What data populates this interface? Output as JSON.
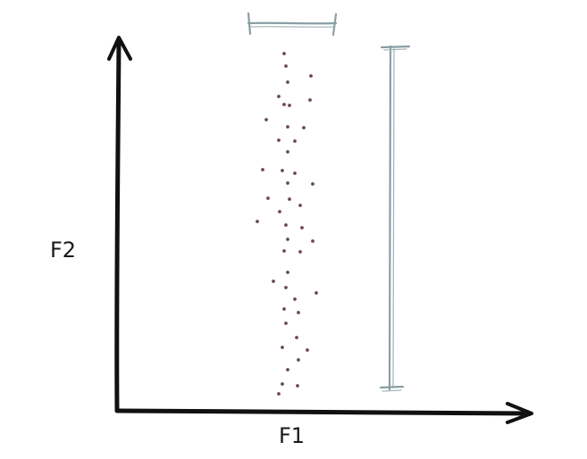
{
  "axes": {
    "x_label": "F1",
    "y_label": "F2"
  },
  "colors": {
    "axis": "#111111",
    "points": "#6b4a50",
    "range_bars": "#8a9ea4"
  },
  "scatter": {
    "description_free": true,
    "points": [
      [
        318,
        60
      ],
      [
        320,
        74
      ],
      [
        348,
        85
      ],
      [
        322,
        92
      ],
      [
        312,
        108
      ],
      [
        347,
        112
      ],
      [
        318,
        117
      ],
      [
        324,
        118
      ],
      [
        298,
        134
      ],
      [
        322,
        142
      ],
      [
        340,
        143
      ],
      [
        312,
        157
      ],
      [
        330,
        158
      ],
      [
        322,
        170
      ],
      [
        294,
        190
      ],
      [
        316,
        191
      ],
      [
        330,
        194
      ],
      [
        350,
        206
      ],
      [
        322,
        205
      ],
      [
        300,
        222
      ],
      [
        324,
        223
      ],
      [
        336,
        230
      ],
      [
        313,
        237
      ],
      [
        288,
        248
      ],
      [
        320,
        252
      ],
      [
        338,
        255
      ],
      [
        350,
        270
      ],
      [
        322,
        268
      ],
      [
        318,
        281
      ],
      [
        336,
        282
      ],
      [
        322,
        305
      ],
      [
        306,
        315
      ],
      [
        320,
        322
      ],
      [
        354,
        328
      ],
      [
        330,
        335
      ],
      [
        318,
        346
      ],
      [
        334,
        350
      ],
      [
        320,
        362
      ],
      [
        332,
        378
      ],
      [
        316,
        389
      ],
      [
        344,
        392
      ],
      [
        334,
        403
      ],
      [
        322,
        414
      ],
      [
        316,
        430
      ],
      [
        333,
        432
      ],
      [
        312,
        441
      ]
    ]
  }
}
